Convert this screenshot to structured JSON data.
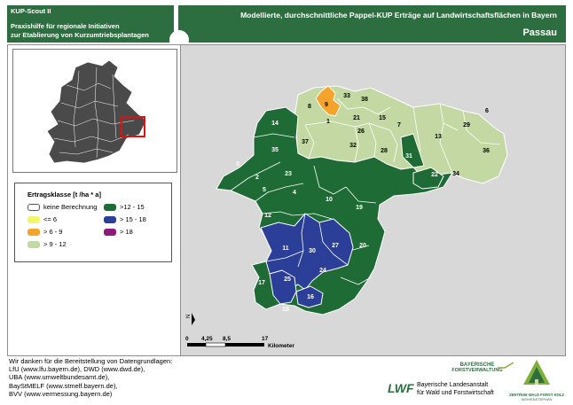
{
  "app": {
    "name": "KUP-Scout II",
    "subtitle_line1": "Praxishilfe für regionale Initiativen",
    "subtitle_line2": "zur Etablierung von Kurzumtriebsplantagen"
  },
  "header": {
    "title": "Modellierte, durchschnittliche Pappel-KUP Erträge auf Landwirtschaftsflächen in Bayern",
    "region": "Passau"
  },
  "legend": {
    "title": "Ertragsklasse [t /ha * a]",
    "items": [
      {
        "label": "keine Berechnung",
        "color": "#ffffff"
      },
      {
        "label": ">12 - 15",
        "color": "#1e6b35"
      },
      {
        "label": "<= 6",
        "color": "#f3f56a"
      },
      {
        "label": "> 15 - 18",
        "color": "#2b3f98"
      },
      {
        "label": "> 6 - 9",
        "color": "#f4a42a"
      },
      {
        "label": "> 18",
        "color": "#8b1a7b"
      },
      {
        "label": "> 9 - 12",
        "color": "#c3d8a2"
      }
    ]
  },
  "map": {
    "districts": [
      {
        "id": "9",
        "cls": "> 6 - 9"
      },
      {
        "id": "33",
        "cls": "> 9 - 12"
      },
      {
        "id": "38",
        "cls": "> 9 - 12"
      },
      {
        "id": "8",
        "cls": "> 9 - 12"
      },
      {
        "id": "1",
        "cls": "> 9 - 12"
      },
      {
        "id": "21",
        "cls": "> 9 - 12"
      },
      {
        "id": "15",
        "cls": "> 9 - 12"
      },
      {
        "id": "26",
        "cls": "> 9 - 12"
      },
      {
        "id": "7",
        "cls": "> 9 - 12"
      },
      {
        "id": "29",
        "cls": "> 9 - 12"
      },
      {
        "id": "6",
        "cls": "> 9 - 12"
      },
      {
        "id": "37",
        "cls": "> 9 - 12"
      },
      {
        "id": "32",
        "cls": "> 9 - 12"
      },
      {
        "id": "28",
        "cls": "> 9 - 12"
      },
      {
        "id": "13",
        "cls": "> 9 - 12"
      },
      {
        "id": "36",
        "cls": "> 9 - 12"
      },
      {
        "id": "34",
        "cls": "> 9 - 12"
      },
      {
        "id": "14",
        "cls": ">12 - 15"
      },
      {
        "id": "35",
        "cls": ">12 - 15"
      },
      {
        "id": "3",
        "cls": ">12 - 15"
      },
      {
        "id": "2",
        "cls": ">12 - 15"
      },
      {
        "id": "23",
        "cls": ">12 - 15"
      },
      {
        "id": "5",
        "cls": ">12 - 15"
      },
      {
        "id": "4",
        "cls": ">12 - 15"
      },
      {
        "id": "10",
        "cls": ">12 - 15"
      },
      {
        "id": "19",
        "cls": ">12 - 15"
      },
      {
        "id": "12",
        "cls": ">12 - 15"
      },
      {
        "id": "31",
        "cls": ">12 - 15"
      },
      {
        "id": "22",
        "cls": ">12 - 15"
      },
      {
        "id": "20",
        "cls": ">12 - 15"
      },
      {
        "id": "24",
        "cls": ">12 - 15"
      },
      {
        "id": "17",
        "cls": ">12 - 15"
      },
      {
        "id": "18",
        "cls": ">12 - 15"
      },
      {
        "id": "11",
        "cls": "> 15 - 18"
      },
      {
        "id": "30",
        "cls": "> 15 - 18"
      },
      {
        "id": "27",
        "cls": "> 15 - 18"
      },
      {
        "id": "25",
        "cls": "> 15 - 18"
      },
      {
        "id": "16",
        "cls": "> 15 - 18"
      }
    ],
    "north_label": "N",
    "scale": {
      "ticks": [
        "0",
        "4,25",
        "8,5",
        "17"
      ],
      "unit": "Kilometer"
    }
  },
  "credits": {
    "lines": [
      "Wir danken für die Bereitstellung von Datengrundlagen:",
      "LfU (www.lfu.bayern.de), DWD (www.dwd.de),",
      "UBA (www.umweltbundesamt.de),",
      "BayStMELF (www.stmelf.bayern.de),",
      "BVV (www.vermessung.bayern.de)"
    ]
  },
  "logos": {
    "bf_line1": "BAYERISCHE",
    "bf_line2": "FORSTVERWALTUNG",
    "lwf_abbr": "LWF",
    "lwf_line1": "Bayerische Landesanstalt",
    "lwf_line2": "für Wald und Forstwirtschaft",
    "zentrum_line1": "ZENTRUM WALD FORST HOLZ",
    "zentrum_line2": "WEIHENSTEPHAN"
  },
  "colors": {
    "header_bg": "#2c6e3f",
    "map_bg": "#d8d8d8",
    "overview_fill": "#4a4a4a",
    "highlight": "#e01010"
  }
}
